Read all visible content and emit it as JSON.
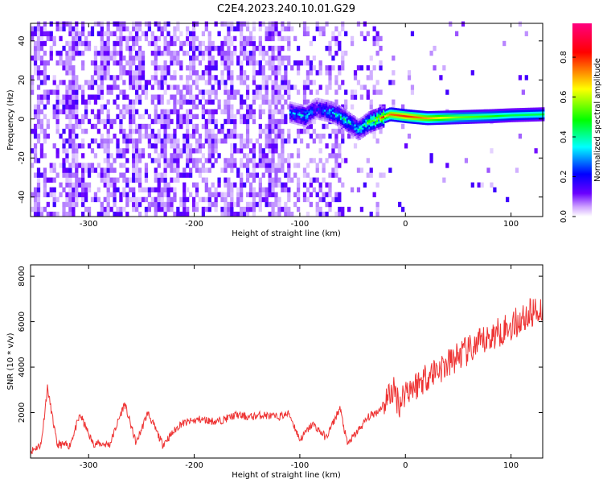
{
  "title": "C2E4.2023.240.10.01.G29",
  "chart_data": [
    {
      "type": "heatmap",
      "xlabel": "Height of straight line (km)",
      "ylabel": "Frequency (Hz)",
      "xlim": [
        -355,
        130
      ],
      "ylim": [
        -50,
        49
      ],
      "xticks": [
        -300,
        -200,
        -100,
        0,
        100
      ],
      "yticks": [
        -40,
        -20,
        0,
        20,
        40
      ],
      "colorbar": {
        "label": "Normalized spectral amplitude",
        "range": [
          0,
          0.97
        ],
        "ticks": [
          0.0,
          0.2,
          0.4,
          0.6,
          0.8
        ],
        "colormap": [
          "#ffffff",
          "#6a00ff",
          "#0000ff",
          "#00ffff",
          "#00ff00",
          "#ffff00",
          "#ff0000",
          "#ff007f"
        ]
      },
      "signal_trace": {
        "x": [
          -110,
          -95,
          -85,
          -70,
          -60,
          -45,
          -35,
          -25,
          -15,
          0,
          20,
          50,
          80,
          100,
          130
        ],
        "y": [
          3,
          1,
          5,
          3,
          0,
          -6,
          -2,
          0,
          2,
          1,
          0,
          0.5,
          1,
          1.5,
          2
        ],
        "amplitude": [
          0.25,
          0.3,
          0.2,
          0.3,
          0.35,
          0.3,
          0.45,
          0.55,
          0.75,
          0.8,
          0.7,
          0.55,
          0.5,
          0.45,
          0.45
        ]
      }
    },
    {
      "type": "line",
      "xlabel": "Height of straight line (km)",
      "ylabel": "SNR (10 * v/v)",
      "xlim": [
        -355,
        130
      ],
      "ylim": [
        0,
        8500
      ],
      "xticks": [
        -300,
        -200,
        -100,
        0,
        100
      ],
      "yticks": [
        2000,
        4000,
        6000,
        8000
      ],
      "color": "#ee3333",
      "x": [
        -355,
        -345,
        -339,
        -330,
        -318,
        -308,
        -296,
        -280,
        -266,
        -255,
        -244,
        -230,
        -213,
        -195,
        -178,
        -160,
        -148,
        -135,
        -122,
        -110,
        -100,
        -88,
        -75,
        -62,
        -55,
        -45,
        -35,
        -25,
        -12,
        -5,
        0,
        10,
        20,
        30,
        40,
        50,
        60,
        70,
        80,
        90,
        100,
        110,
        120,
        130
      ],
      "y": [
        300,
        600,
        3100,
        600,
        550,
        1900,
        650,
        600,
        2400,
        650,
        2000,
        600,
        1500,
        1700,
        1600,
        1900,
        1800,
        1900,
        1800,
        1950,
        800,
        1500,
        900,
        2200,
        600,
        1200,
        1800,
        2100,
        3000,
        2400,
        3000,
        3200,
        3600,
        3900,
        4100,
        4500,
        4700,
        5000,
        5300,
        5600,
        5800,
        6100,
        6400,
        6600
      ]
    }
  ]
}
